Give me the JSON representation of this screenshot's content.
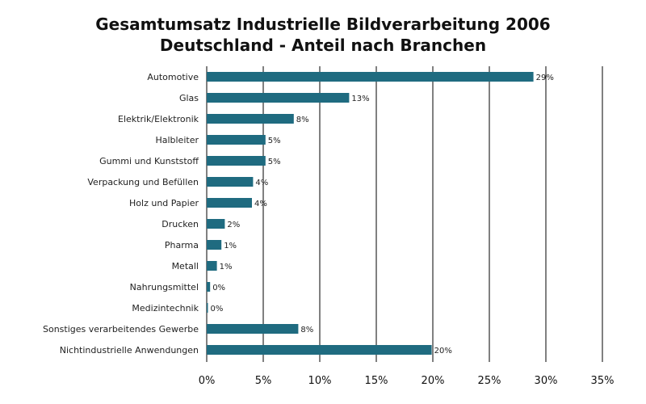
{
  "chart_data": {
    "type": "bar",
    "orientation": "horizontal",
    "title": [
      "Gesamtumsatz Industrielle Bildverarbeitung 2006",
      "Deutschland - Anteil nach Branchen"
    ],
    "categories": [
      "Automotive",
      "Glas",
      "Elektrik/Elektronik",
      "Halbleiter",
      "Gummi und Kunststoff",
      "Verpackung und Befüllen",
      "Holz und Papier",
      "Drucken",
      "Pharma",
      "Metall",
      "Nahrungsmittel",
      "Medizintechnik",
      "Sonstiges verarbeitendes Gewerbe",
      "Nichtindustrielle Anwendungen"
    ],
    "values": [
      28.9,
      12.6,
      7.7,
      5.2,
      5.2,
      4.1,
      4.0,
      1.6,
      1.3,
      0.9,
      0.3,
      0.1,
      8.1,
      19.9
    ],
    "data_labels": [
      "29%",
      "13%",
      "8%",
      "5%",
      "5%",
      "4%",
      "4%",
      "2%",
      "1%",
      "1%",
      "0%",
      "0%",
      "8%",
      "20%"
    ],
    "xlim": [
      0,
      35
    ],
    "x_ticks": [
      0,
      5,
      10,
      15,
      20,
      25,
      30,
      35
    ],
    "x_tick_labels": [
      "0%",
      "5%",
      "10%",
      "15%",
      "20%",
      "25%",
      "30%",
      "35%"
    ],
    "xlabel": "",
    "ylabel": "",
    "grid": "vertical",
    "legend": "none",
    "bar_color": "#1f6b80"
  }
}
